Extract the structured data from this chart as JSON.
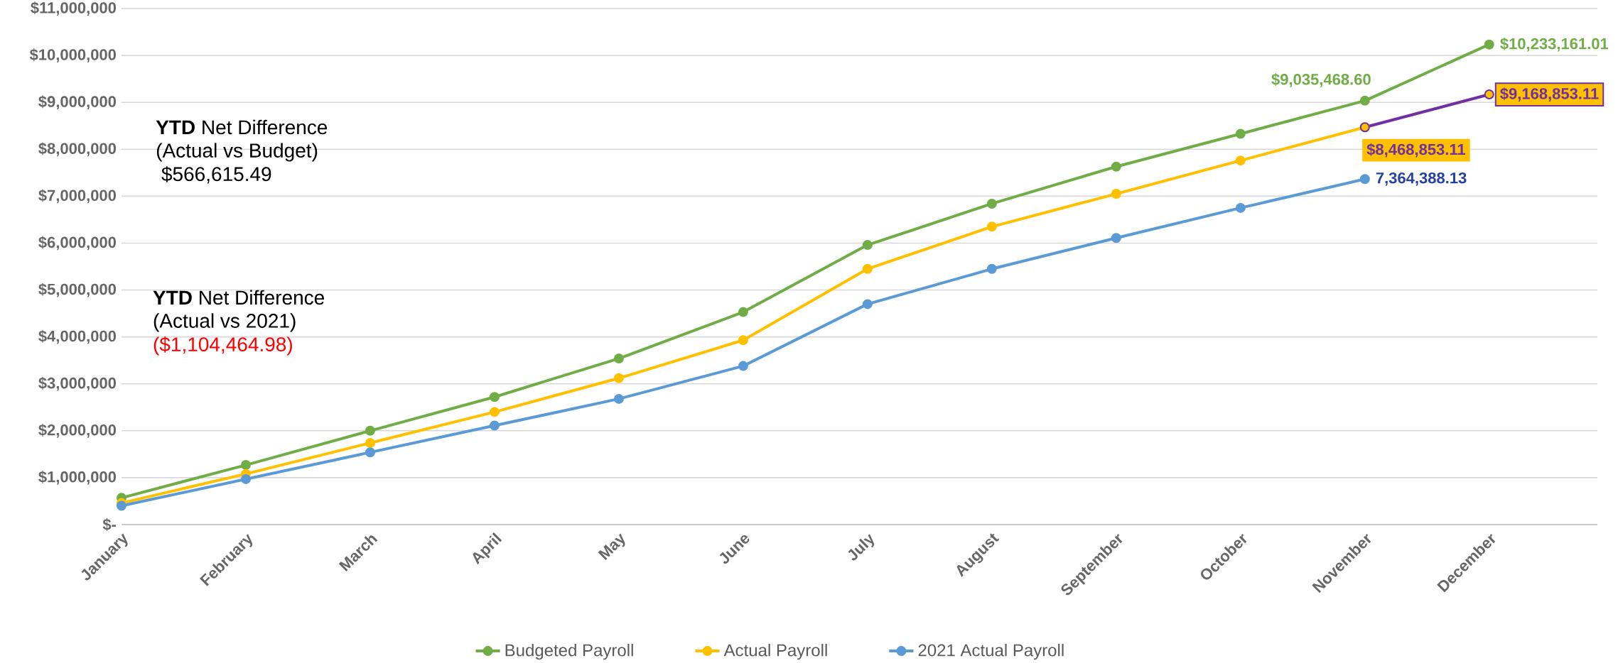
{
  "chart_data": {
    "type": "line",
    "categories": [
      "January",
      "February",
      "March",
      "April",
      "May",
      "June",
      "July",
      "August",
      "September",
      "October",
      "November",
      "December"
    ],
    "series": [
      {
        "name": "Budgeted Payroll",
        "color": "#70ad47",
        "values": [
          570000,
          1270000,
          2000000,
          2720000,
          3540000,
          4530000,
          5960000,
          6840000,
          7630000,
          8330000,
          9035468.6,
          10233161.01
        ],
        "value_labels": [
          null,
          null,
          null,
          null,
          null,
          null,
          null,
          null,
          null,
          null,
          "$9,035,468.60",
          "$10,233,161.01"
        ]
      },
      {
        "name": "Actual Payroll",
        "color": "#ffc000",
        "values": [
          460000,
          1080000,
          1740000,
          2400000,
          3120000,
          3930000,
          5450000,
          6350000,
          7050000,
          7760000,
          8468853.11,
          null
        ]
      },
      {
        "color": "#7030a0",
        "values": [
          null,
          null,
          null,
          null,
          null,
          null,
          null,
          null,
          null,
          null,
          8468853.11,
          9168853.11
        ],
        "value_labels": [
          null,
          null,
          null,
          null,
          null,
          null,
          null,
          null,
          null,
          null,
          "$8,468,853.11",
          "$9,168,853.11"
        ]
      },
      {
        "name": "2021 Actual Payroll",
        "color": "#5b9bd5",
        "values": [
          400000,
          970000,
          1540000,
          2110000,
          2680000,
          3380000,
          4700000,
          5450000,
          6110000,
          6750000,
          7364388.13,
          null
        ],
        "value_labels": [
          null,
          null,
          null,
          null,
          null,
          null,
          null,
          null,
          null,
          null,
          "7,364,388.13",
          null
        ]
      }
    ],
    "ylim": [
      0,
      11000000
    ],
    "yticks": [
      {
        "value": 0,
        "label": "$-"
      },
      {
        "value": 1000000,
        "label": "$1,000,000"
      },
      {
        "value": 2000000,
        "label": "$2,000,000"
      },
      {
        "value": 3000000,
        "label": "$3,000,000"
      },
      {
        "value": 4000000,
        "label": "$4,000,000"
      },
      {
        "value": 5000000,
        "label": "$5,000,000"
      },
      {
        "value": 6000000,
        "label": "$6,000,000"
      },
      {
        "value": 7000000,
        "label": "$7,000,000"
      },
      {
        "value": 8000000,
        "label": "$8,000,000"
      },
      {
        "value": 9000000,
        "label": "$9,000,000"
      },
      {
        "value": 10000000,
        "label": "$10,000,000"
      },
      {
        "value": 11000000,
        "label": "$11,000,000"
      }
    ],
    "annotations": [
      "**YTD** Net Difference",
      "(Actual vs Budget)",
      " $566,615.49",
      "**YTD** Net Difference",
      "(Actual vs 2021)",
      "($1,104,464.98)"
    ],
    "grid": "y",
    "legend": "bottom",
    "marker": "circle",
    "line_style": "solid"
  }
}
